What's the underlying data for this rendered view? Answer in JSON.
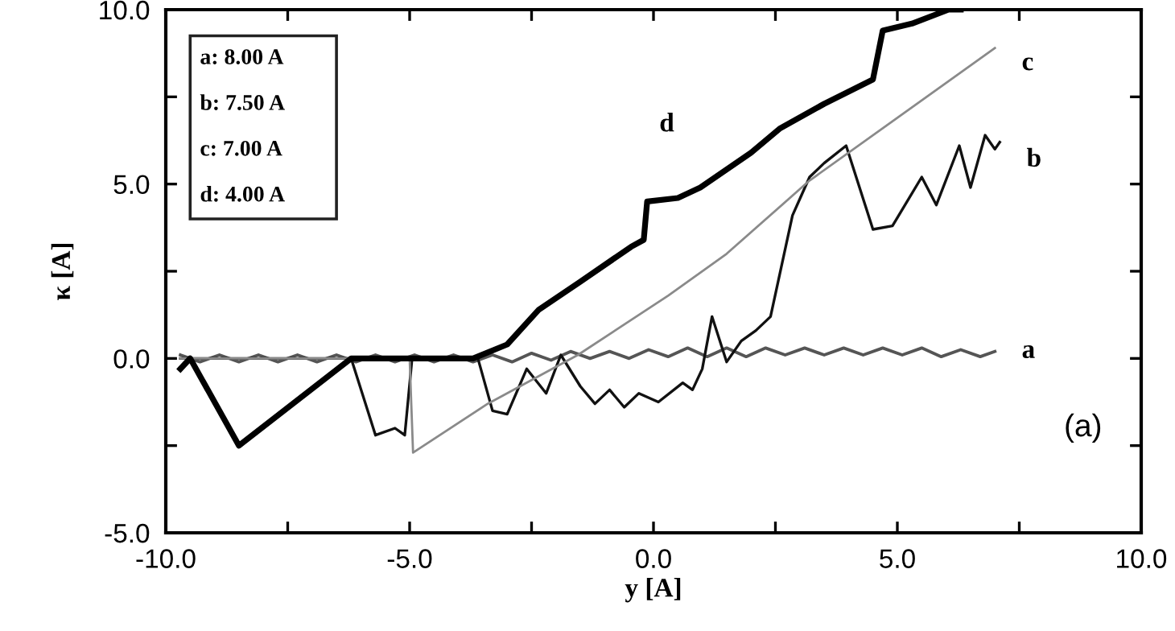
{
  "chart_data": {
    "type": "line",
    "xlabel": "y [A]",
    "ylabel": "κ [A]",
    "xlim": [
      -10,
      10
    ],
    "ylim": [
      -5,
      10
    ],
    "xticks": [
      {
        "value": -10,
        "label": "-10.0"
      },
      {
        "value": -7.5,
        "label": null
      },
      {
        "value": -5,
        "label": "-5.0"
      },
      {
        "value": -2.5,
        "label": null
      },
      {
        "value": 0,
        "label": "0.0"
      },
      {
        "value": 2.5,
        "label": null
      },
      {
        "value": 5,
        "label": "5.0"
      },
      {
        "value": 7.5,
        "label": null
      },
      {
        "value": 10,
        "label": "10.0"
      }
    ],
    "yticks": [
      {
        "value": -5,
        "label": "-5.0"
      },
      {
        "value": -2.5,
        "label": null
      },
      {
        "value": 0,
        "label": "0.0"
      },
      {
        "value": 2.5,
        "label": null
      },
      {
        "value": 5,
        "label": "5.0"
      },
      {
        "value": 7.5,
        "label": null
      },
      {
        "value": 10,
        "label": "10.0"
      }
    ],
    "grid": false,
    "marker": "none",
    "line_style": "solid",
    "series": [
      {
        "name": "a",
        "color": "#555555",
        "x": [
          -9.7,
          -9.3,
          -8.9,
          -8.5,
          -8.1,
          -7.7,
          -7.3,
          -6.9,
          -6.5,
          -6.1,
          -5.7,
          -5.3,
          -4.9,
          -4.5,
          -4.1,
          -3.7,
          -3.3,
          -2.9,
          -2.5,
          -2.1,
          -1.7,
          -1.3,
          -0.9,
          -0.5,
          -0.1,
          0.3,
          0.7,
          1.1,
          1.5,
          1.9,
          2.3,
          2.7,
          3.1,
          3.5,
          3.9,
          4.3,
          4.7,
          5.1,
          5.5,
          5.9,
          6.3,
          6.7,
          7.0
        ],
        "values": [
          0.1,
          -0.1,
          0.1,
          -0.1,
          0.1,
          -0.1,
          0.1,
          -0.1,
          0.1,
          -0.1,
          0.1,
          -0.1,
          0.1,
          -0.1,
          0.1,
          -0.1,
          0.1,
          -0.1,
          0.15,
          -0.05,
          0.2,
          0,
          0.2,
          0,
          0.25,
          0.05,
          0.3,
          0.05,
          0.3,
          0.05,
          0.3,
          0.1,
          0.3,
          0.1,
          0.3,
          0.1,
          0.3,
          0.1,
          0.3,
          0.05,
          0.25,
          0.05,
          0.2
        ]
      },
      {
        "name": "b",
        "color": "#111111",
        "x": [
          -9.7,
          -6.2,
          -5.7,
          -5.3,
          -5.1,
          -4.95,
          -3.6,
          -3.3,
          -3.0,
          -2.6,
          -2.2,
          -1.9,
          -1.5,
          -1.2,
          -0.9,
          -0.6,
          -0.3,
          0.1,
          0.6,
          0.8,
          1.0,
          1.2,
          1.5,
          1.8,
          2.1,
          2.4,
          2.85,
          3.2,
          3.5,
          3.95,
          4.5,
          4.9,
          5.5,
          5.8,
          6.27,
          6.5,
          6.8,
          7.0,
          7.1
        ],
        "values": [
          0,
          0,
          -2.2,
          -2.0,
          -2.2,
          0,
          0,
          -1.5,
          -1.6,
          -0.3,
          -1.0,
          0.1,
          -0.8,
          -1.3,
          -0.9,
          -1.4,
          -1.0,
          -1.25,
          -0.7,
          -0.9,
          -0.3,
          1.2,
          -0.1,
          0.5,
          0.8,
          1.2,
          4.1,
          5.2,
          5.6,
          6.1,
          3.7,
          3.8,
          5.2,
          4.4,
          6.1,
          4.9,
          6.4,
          6.0,
          6.2
        ]
      },
      {
        "name": "c",
        "color": "#8a8a8a",
        "x": [
          -9.7,
          -5.0,
          -4.93,
          -3.4,
          -1.55,
          0.3,
          1.5,
          3.2,
          5.0,
          7.0
        ],
        "values": [
          0,
          0,
          -2.7,
          -1.3,
          0.1,
          1.8,
          3.0,
          5.1,
          6.9,
          8.9
        ]
      },
      {
        "name": "d",
        "color": "#000000",
        "x": [
          -9.7,
          -9.5,
          -8.5,
          -6.2,
          -3.7,
          -3.0,
          -2.35,
          -1.5,
          -0.46,
          -0.2,
          -0.13,
          0.5,
          0.96,
          2.0,
          2.6,
          3.5,
          4.5,
          4.7,
          5.3,
          6.05,
          6.3
        ],
        "values": [
          -0.3,
          0,
          -2.5,
          0,
          0,
          0.4,
          1.4,
          2.2,
          3.2,
          3.4,
          4.5,
          4.6,
          4.9,
          5.9,
          6.6,
          7.3,
          8.0,
          9.4,
          9.6,
          10.0,
          10.0
        ]
      }
    ],
    "annotations": [
      "a: 8.00 A",
      "b: 7.50 A",
      "c: 7.00 A",
      "d: 4.00 A",
      "(a)"
    ]
  }
}
